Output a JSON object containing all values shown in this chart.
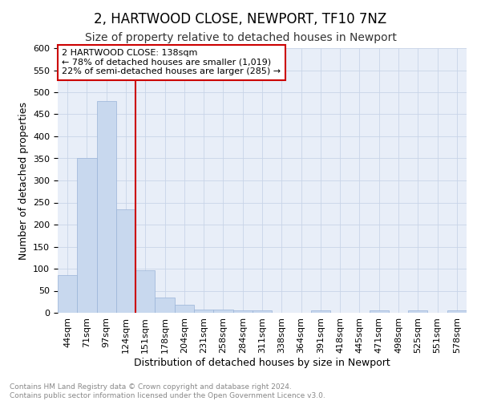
{
  "title": "2, HARTWOOD CLOSE, NEWPORT, TF10 7NZ",
  "subtitle": "Size of property relative to detached houses in Newport",
  "xlabel": "Distribution of detached houses by size in Newport",
  "ylabel": "Number of detached properties",
  "categories": [
    "44sqm",
    "71sqm",
    "97sqm",
    "124sqm",
    "151sqm",
    "178sqm",
    "204sqm",
    "231sqm",
    "258sqm",
    "284sqm",
    "311sqm",
    "338sqm",
    "364sqm",
    "391sqm",
    "418sqm",
    "445sqm",
    "471sqm",
    "498sqm",
    "525sqm",
    "551sqm",
    "578sqm"
  ],
  "bar_values": [
    85,
    350,
    480,
    235,
    97,
    35,
    18,
    8,
    8,
    5,
    5,
    0,
    0,
    5,
    0,
    0,
    5,
    0,
    5,
    0,
    5
  ],
  "bar_color": "#c8d8ee",
  "bar_edge_color": "#9ab4d8",
  "vline_color": "#cc0000",
  "ylim": [
    0,
    600
  ],
  "annotation_text": "2 HARTWOOD CLOSE: 138sqm\n← 78% of detached houses are smaller (1,019)\n22% of semi-detached houses are larger (285) →",
  "annotation_box_edge_color": "#cc0000",
  "annotation_text_color": "#000000",
  "footer_text": "Contains HM Land Registry data © Crown copyright and database right 2024.\nContains public sector information licensed under the Open Government Licence v3.0.",
  "title_fontsize": 12,
  "subtitle_fontsize": 10,
  "axis_label_fontsize": 9,
  "tick_fontsize": 8,
  "annotation_fontsize": 8,
  "grid_color": "#c8d4e8",
  "plot_bg_color": "#e8eef8",
  "fig_bg_color": "#ffffff"
}
